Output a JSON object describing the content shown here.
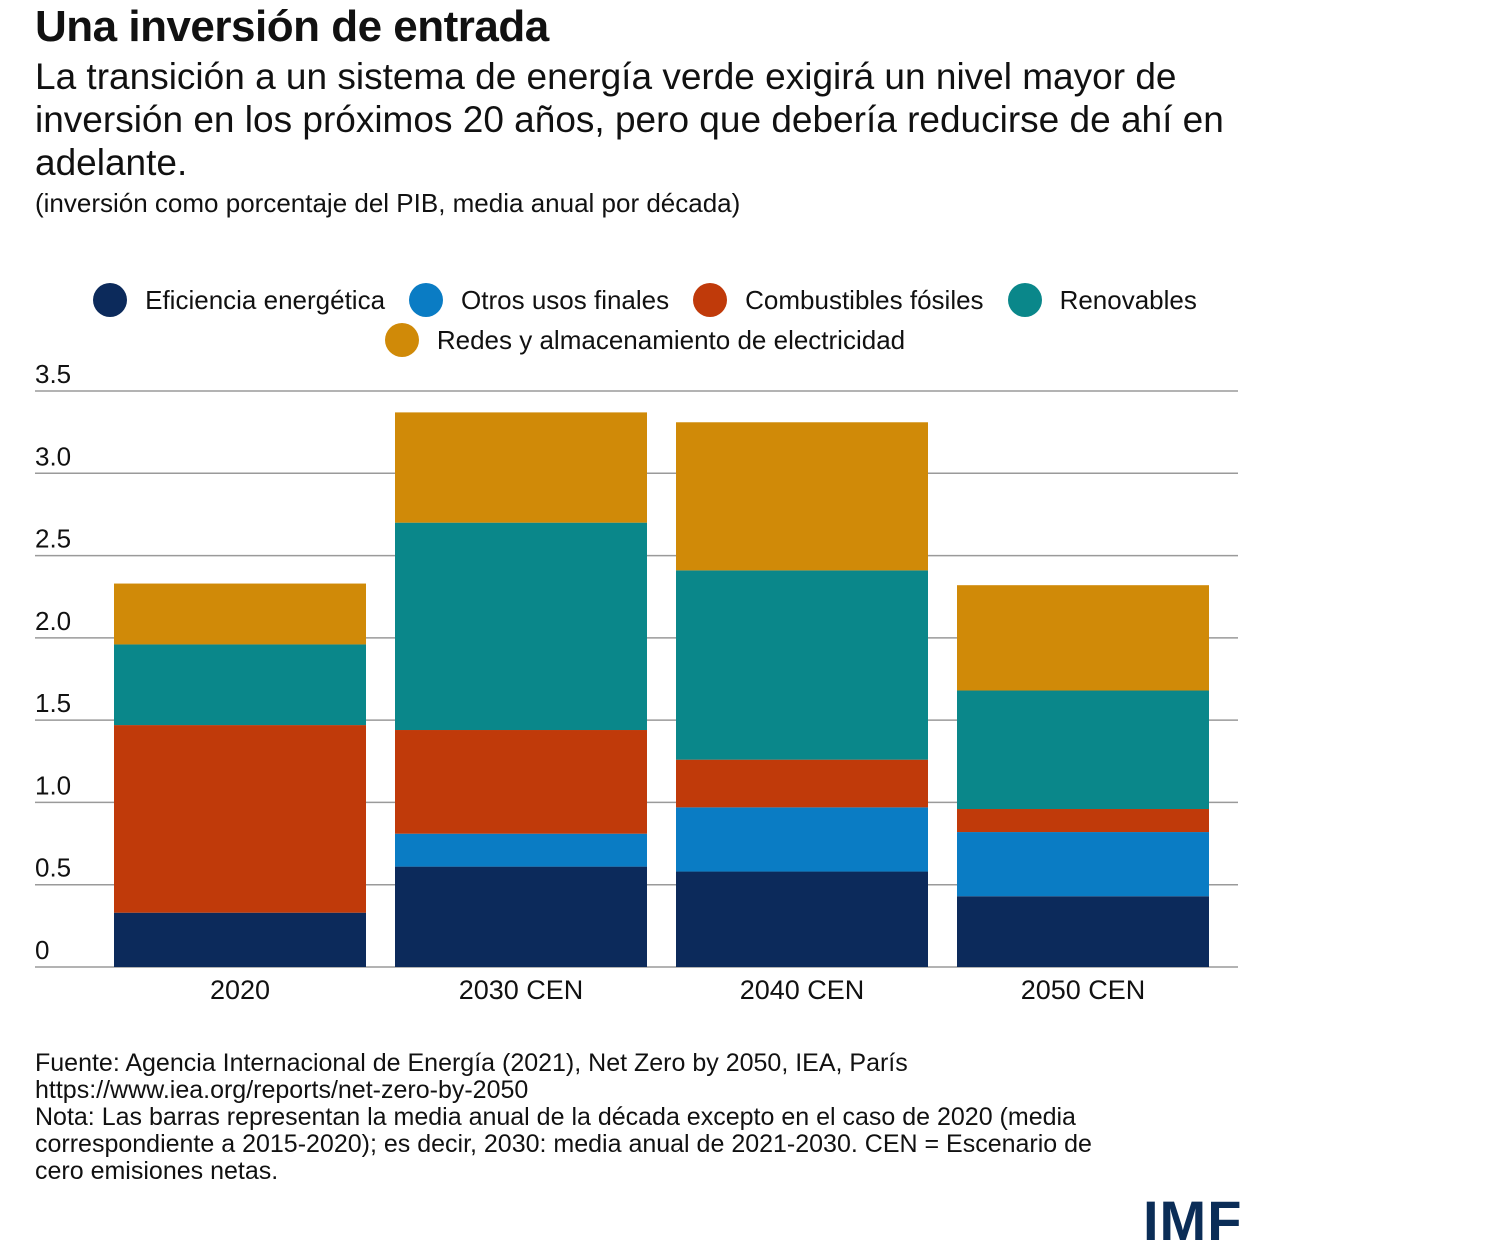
{
  "title": "Una inversión de entrada",
  "subtitle": "La transición a un sistema de energía verde exigirá un nivel mayor de inversión en los próximos 20 años, pero que debería reducirse de ahí en adelante.",
  "units": "(inversión como porcentaje del PIB, media anual por década)",
  "colors": {
    "eficiencia": "#0c2a5b",
    "otros": "#0a7cc4",
    "fosiles": "#c03a0a",
    "renovables": "#0a878a",
    "redes": "#d08a08"
  },
  "chart_data": {
    "type": "bar",
    "stacked": true,
    "categories": [
      "2020",
      "2030 CEN",
      "2040 CEN",
      "2050 CEN"
    ],
    "series": [
      {
        "name": "Eficiencia energética",
        "color": "#0c2a5b",
        "values": [
          0.33,
          0.61,
          0.58,
          0.43
        ]
      },
      {
        "name": "Otros usos finales",
        "color": "#0a7cc4",
        "values": [
          0.0,
          0.2,
          0.39,
          0.39
        ]
      },
      {
        "name": "Combustibles fósiles",
        "color": "#c03a0a",
        "values": [
          1.14,
          0.63,
          0.29,
          0.14
        ]
      },
      {
        "name": "Renovables",
        "color": "#0a878a",
        "values": [
          0.49,
          1.26,
          1.15,
          0.72
        ]
      },
      {
        "name": "Redes y almacenamiento de electricidad",
        "color": "#d08a08",
        "values": [
          0.37,
          0.67,
          0.9,
          0.64
        ]
      }
    ],
    "yticks": [
      "3.5",
      "3.0",
      "2.5",
      "2.0",
      "1.5",
      "1.0",
      "0.5",
      "0"
    ],
    "ylim": [
      0,
      3.5
    ],
    "grid": true,
    "legend_position": "top"
  },
  "footer": {
    "source": "Fuente: Agencia Internacional de Energía  (2021), Net Zero by 2050, IEA, París",
    "url": "https://www.iea.org/reports/net-zero-by-2050",
    "note1": "Nota: Las barras representan la media anual de la década excepto en el caso de 2020 (media",
    "note2": "correspondiente a 2015-2020); es decir, 2030: media anual de 2021-2030. CEN = Escenario de",
    "note3": "cero emisiones netas."
  },
  "logo": "IMF"
}
